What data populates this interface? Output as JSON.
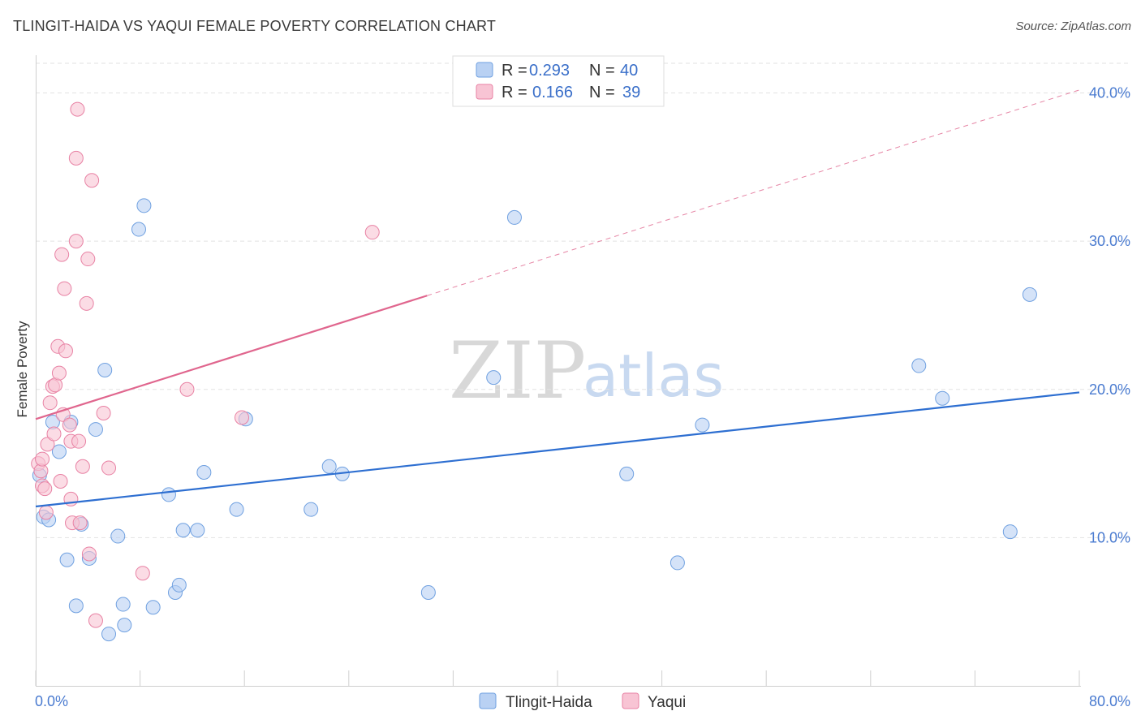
{
  "title": "TLINGIT-HAIDA VS YAQUI FEMALE POVERTY CORRELATION CHART",
  "source": "Source: ZipAtlas.com",
  "watermark": {
    "zip": "ZIP",
    "atlas": "atlas"
  },
  "chart_data": {
    "type": "scatter",
    "xlabel": "",
    "ylabel": "Female Poverty",
    "xlim": [
      0,
      80
    ],
    "ylim": [
      0,
      42
    ],
    "x_tick_labels": [
      "0.0%",
      "80.0%"
    ],
    "y_ticks": [
      10,
      20,
      30,
      40
    ],
    "y_tick_labels": [
      "10.0%",
      "20.0%",
      "30.0%",
      "40.0%"
    ],
    "legend": [
      {
        "name": "Tlingit-Haida",
        "r_label": "R =",
        "r": "0.293",
        "n_label": "N =",
        "n": "40",
        "color": "#6fa0e0",
        "fill": "#b9d1f3"
      },
      {
        "name": "Yaqui",
        "r_label": "R =",
        "r": "0.166",
        "n_label": "N =",
        "n": "39",
        "color": "#e882a4",
        "fill": "#f8c4d4"
      }
    ],
    "series": [
      {
        "name": "Tlingit-Haida",
        "color": "#6fa0e0",
        "trend": {
          "x0": 0,
          "y0": 12.1,
          "x1": 80,
          "y1": 19.8,
          "solid_to": 80,
          "color": "#2e6fd1"
        },
        "points": [
          [
            0.3,
            14.2
          ],
          [
            0.6,
            11.4
          ],
          [
            1.0,
            11.2
          ],
          [
            1.3,
            17.8
          ],
          [
            1.8,
            15.8
          ],
          [
            2.4,
            8.5
          ],
          [
            2.7,
            17.8
          ],
          [
            3.1,
            5.4
          ],
          [
            3.5,
            10.9
          ],
          [
            4.1,
            8.6
          ],
          [
            4.6,
            17.3
          ],
          [
            5.3,
            21.3
          ],
          [
            5.6,
            3.5
          ],
          [
            6.3,
            10.1
          ],
          [
            6.7,
            5.5
          ],
          [
            6.8,
            4.1
          ],
          [
            7.9,
            30.8
          ],
          [
            8.3,
            32.4
          ],
          [
            9.0,
            5.3
          ],
          [
            10.2,
            12.9
          ],
          [
            10.7,
            6.3
          ],
          [
            11.0,
            6.8
          ],
          [
            11.3,
            10.5
          ],
          [
            12.4,
            10.5
          ],
          [
            12.9,
            14.4
          ],
          [
            15.4,
            11.9
          ],
          [
            16.1,
            18.0
          ],
          [
            21.1,
            11.9
          ],
          [
            22.5,
            14.8
          ],
          [
            23.5,
            14.3
          ],
          [
            30.1,
            6.3
          ],
          [
            35.1,
            20.8
          ],
          [
            36.7,
            31.6
          ],
          [
            45.3,
            14.3
          ],
          [
            49.2,
            8.3
          ],
          [
            51.1,
            17.6
          ],
          [
            67.7,
            21.6
          ],
          [
            69.5,
            19.4
          ],
          [
            74.7,
            10.4
          ],
          [
            76.2,
            26.4
          ]
        ]
      },
      {
        "name": "Yaqui",
        "color": "#e882a4",
        "trend": {
          "x0": 0,
          "y0": 18.0,
          "x1": 80,
          "y1": 40.2,
          "solid_to": 30,
          "color": "#e0668e"
        },
        "points": [
          [
            0.2,
            15.0
          ],
          [
            0.4,
            14.5
          ],
          [
            0.5,
            15.3
          ],
          [
            0.5,
            13.5
          ],
          [
            0.7,
            13.3
          ],
          [
            0.8,
            11.7
          ],
          [
            0.9,
            16.3
          ],
          [
            1.1,
            19.1
          ],
          [
            1.3,
            20.2
          ],
          [
            1.4,
            17.0
          ],
          [
            1.5,
            20.3
          ],
          [
            1.7,
            22.9
          ],
          [
            1.8,
            21.1
          ],
          [
            1.9,
            13.8
          ],
          [
            2.0,
            29.1
          ],
          [
            2.1,
            18.3
          ],
          [
            2.2,
            26.8
          ],
          [
            2.3,
            22.6
          ],
          [
            2.6,
            17.6
          ],
          [
            2.7,
            12.6
          ],
          [
            2.7,
            16.5
          ],
          [
            2.8,
            11.0
          ],
          [
            3.1,
            30.0
          ],
          [
            3.1,
            35.6
          ],
          [
            3.2,
            38.9
          ],
          [
            3.3,
            16.5
          ],
          [
            3.4,
            11.0
          ],
          [
            3.6,
            14.8
          ],
          [
            3.9,
            25.8
          ],
          [
            4.0,
            28.8
          ],
          [
            4.1,
            8.9
          ],
          [
            4.3,
            34.1
          ],
          [
            4.6,
            4.4
          ],
          [
            5.2,
            18.4
          ],
          [
            5.6,
            14.7
          ],
          [
            8.2,
            7.6
          ],
          [
            11.6,
            20.0
          ],
          [
            15.8,
            18.1
          ],
          [
            25.8,
            30.6
          ]
        ]
      }
    ]
  }
}
